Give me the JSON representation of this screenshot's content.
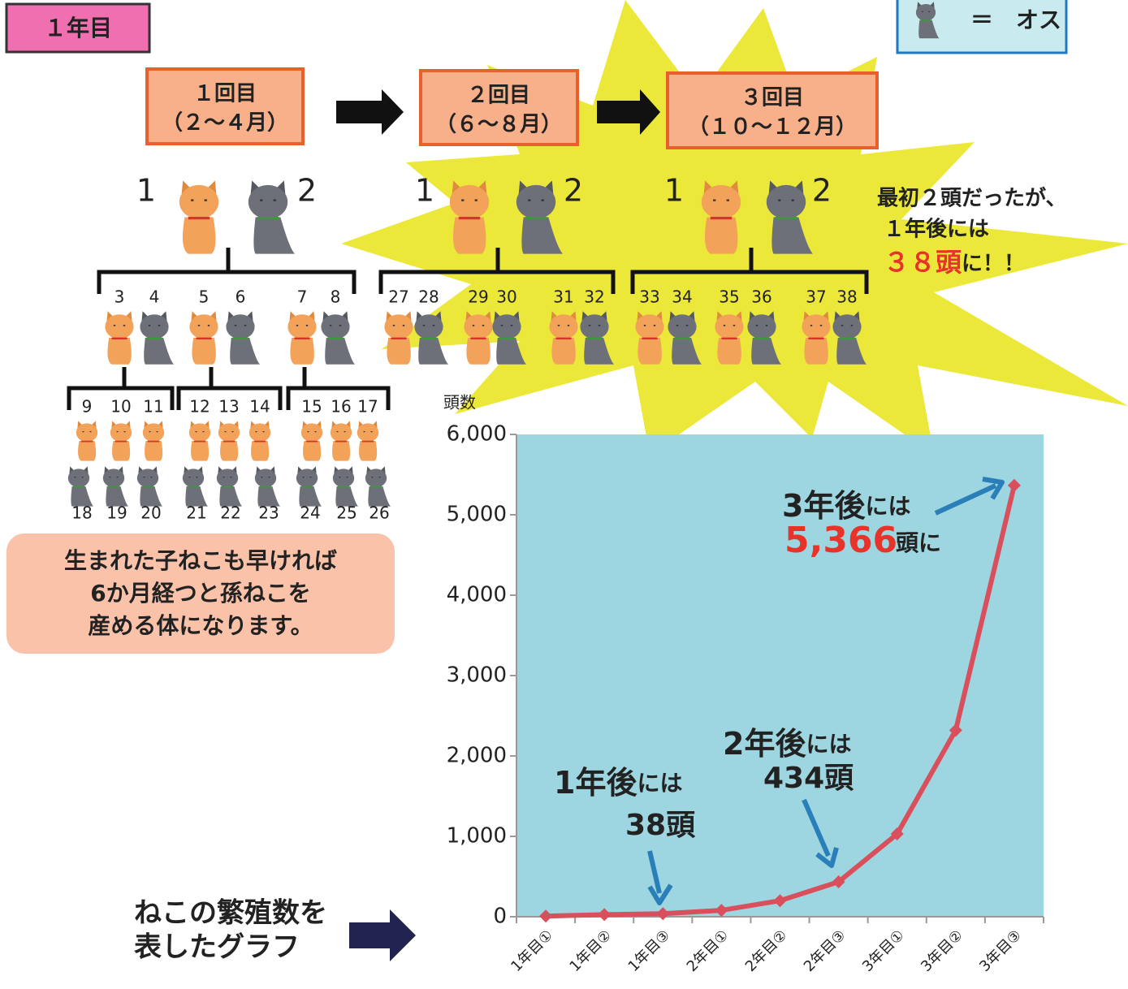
{
  "header": {
    "year_tag": "１年目",
    "legend": "＝　オス"
  },
  "rounds": [
    {
      "title": "１回目",
      "period": "（２～４月）"
    },
    {
      "title": "２回目",
      "period": "（６～８月）"
    },
    {
      "title": "３回目",
      "period": "（１０～１２月）"
    }
  ],
  "parent_labels": [
    1,
    2,
    1,
    2,
    1,
    2
  ],
  "kitten_labels": [
    3,
    4,
    5,
    6,
    7,
    8,
    27,
    28,
    29,
    30,
    31,
    32,
    33,
    34,
    35,
    36,
    37,
    38
  ],
  "grandkitten_top_labels": [
    9,
    10,
    11,
    12,
    13,
    14,
    15,
    16,
    17
  ],
  "grandkitten_bottom_labels": [
    18,
    19,
    20,
    21,
    22,
    23,
    24,
    25,
    26
  ],
  "callout": {
    "line1": "最初２頭だったが、",
    "line2": "１年後には",
    "highlight": "３８頭",
    "tail": "に！！"
  },
  "note": {
    "lines": [
      "生まれた子ねこも早ければ",
      "6か月経つと孫ねこを",
      "産める体になります。"
    ]
  },
  "graph_caption": {
    "lines": [
      "ねこの繁殖数を",
      "表したグラフ"
    ]
  },
  "chart_data": {
    "type": "line",
    "y_label": "頭数",
    "categories": [
      "1年目①",
      "1年目②",
      "1年目③",
      "2年目①",
      "2年目②",
      "2年目③",
      "3年目①",
      "3年目②",
      "3年目③"
    ],
    "series": [
      {
        "name": "頭数",
        "color": "#d94f5c",
        "values": [
          8,
          26,
          38,
          80,
          200,
          434,
          1030,
          2320,
          5366
        ]
      }
    ],
    "ylim": [
      0,
      6000
    ],
    "yticks": [
      0,
      {
        "value": 1000,
        "label": "1,000"
      },
      {
        "value": 2000,
        "label": "2,000"
      },
      {
        "value": 3000,
        "label": "3,000"
      },
      {
        "value": 4000,
        "label": "4,000"
      },
      {
        "value": 5000,
        "label": "5,000"
      },
      {
        "value": 6000,
        "label": "6,000"
      }
    ],
    "background": "#9dd5e0",
    "annotations": [
      {
        "big": "1年後",
        "small": "には",
        "count": "38頭"
      },
      {
        "big": "2年後",
        "small": "には",
        "count": "434頭"
      },
      {
        "big": "3年後",
        "small": "には",
        "count": "5,366",
        "tail": "頭に"
      }
    ]
  }
}
